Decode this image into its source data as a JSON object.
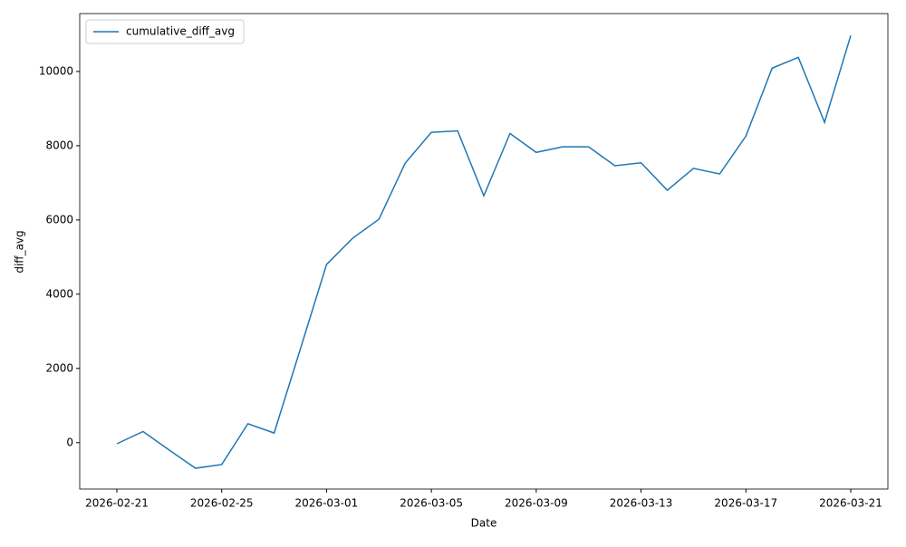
{
  "chart_data": {
    "type": "line",
    "x_label": "Date",
    "y_label": "diff_avg",
    "x": [
      "2026-02-21",
      "2026-02-22",
      "2026-02-23",
      "2026-02-24",
      "2026-02-25",
      "2026-02-26",
      "2026-02-27",
      "2026-02-28",
      "2026-03-01",
      "2026-03-02",
      "2026-03-03",
      "2026-03-04",
      "2026-03-05",
      "2026-03-06",
      "2026-03-07",
      "2026-03-08",
      "2026-03-09",
      "2026-03-10",
      "2026-03-11",
      "2026-03-12",
      "2026-03-13",
      "2026-03-14",
      "2026-03-15",
      "2026-03-16",
      "2026-03-17",
      "2026-03-18",
      "2026-03-19",
      "2026-03-20",
      "2026-03-21"
    ],
    "series": [
      {
        "name": "cumulative_diff_avg",
        "color": "#1f77b4",
        "values": [
          -30,
          300,
          -200,
          -690,
          -590,
          510,
          260,
          2520,
          4800,
          5510,
          6020,
          7530,
          8360,
          8400,
          6650,
          8330,
          7820,
          7970,
          7970,
          7460,
          7540,
          6800,
          7390,
          7240,
          8260,
          10090,
          10380,
          8630,
          10970
        ]
      }
    ],
    "xlim": [
      "2026-02-19T14:00:00Z",
      "2026-03-22T10:00:00Z"
    ],
    "xticks": [
      "2026-02-21",
      "2026-02-25",
      "2026-03-01",
      "2026-03-05",
      "2026-03-09",
      "2026-03-13",
      "2026-03-17",
      "2026-03-21"
    ],
    "ylim": [
      -1250,
      11560
    ],
    "yticks": [
      0,
      2000,
      4000,
      6000,
      8000,
      10000
    ],
    "grid": false,
    "legend": "upper left"
  }
}
